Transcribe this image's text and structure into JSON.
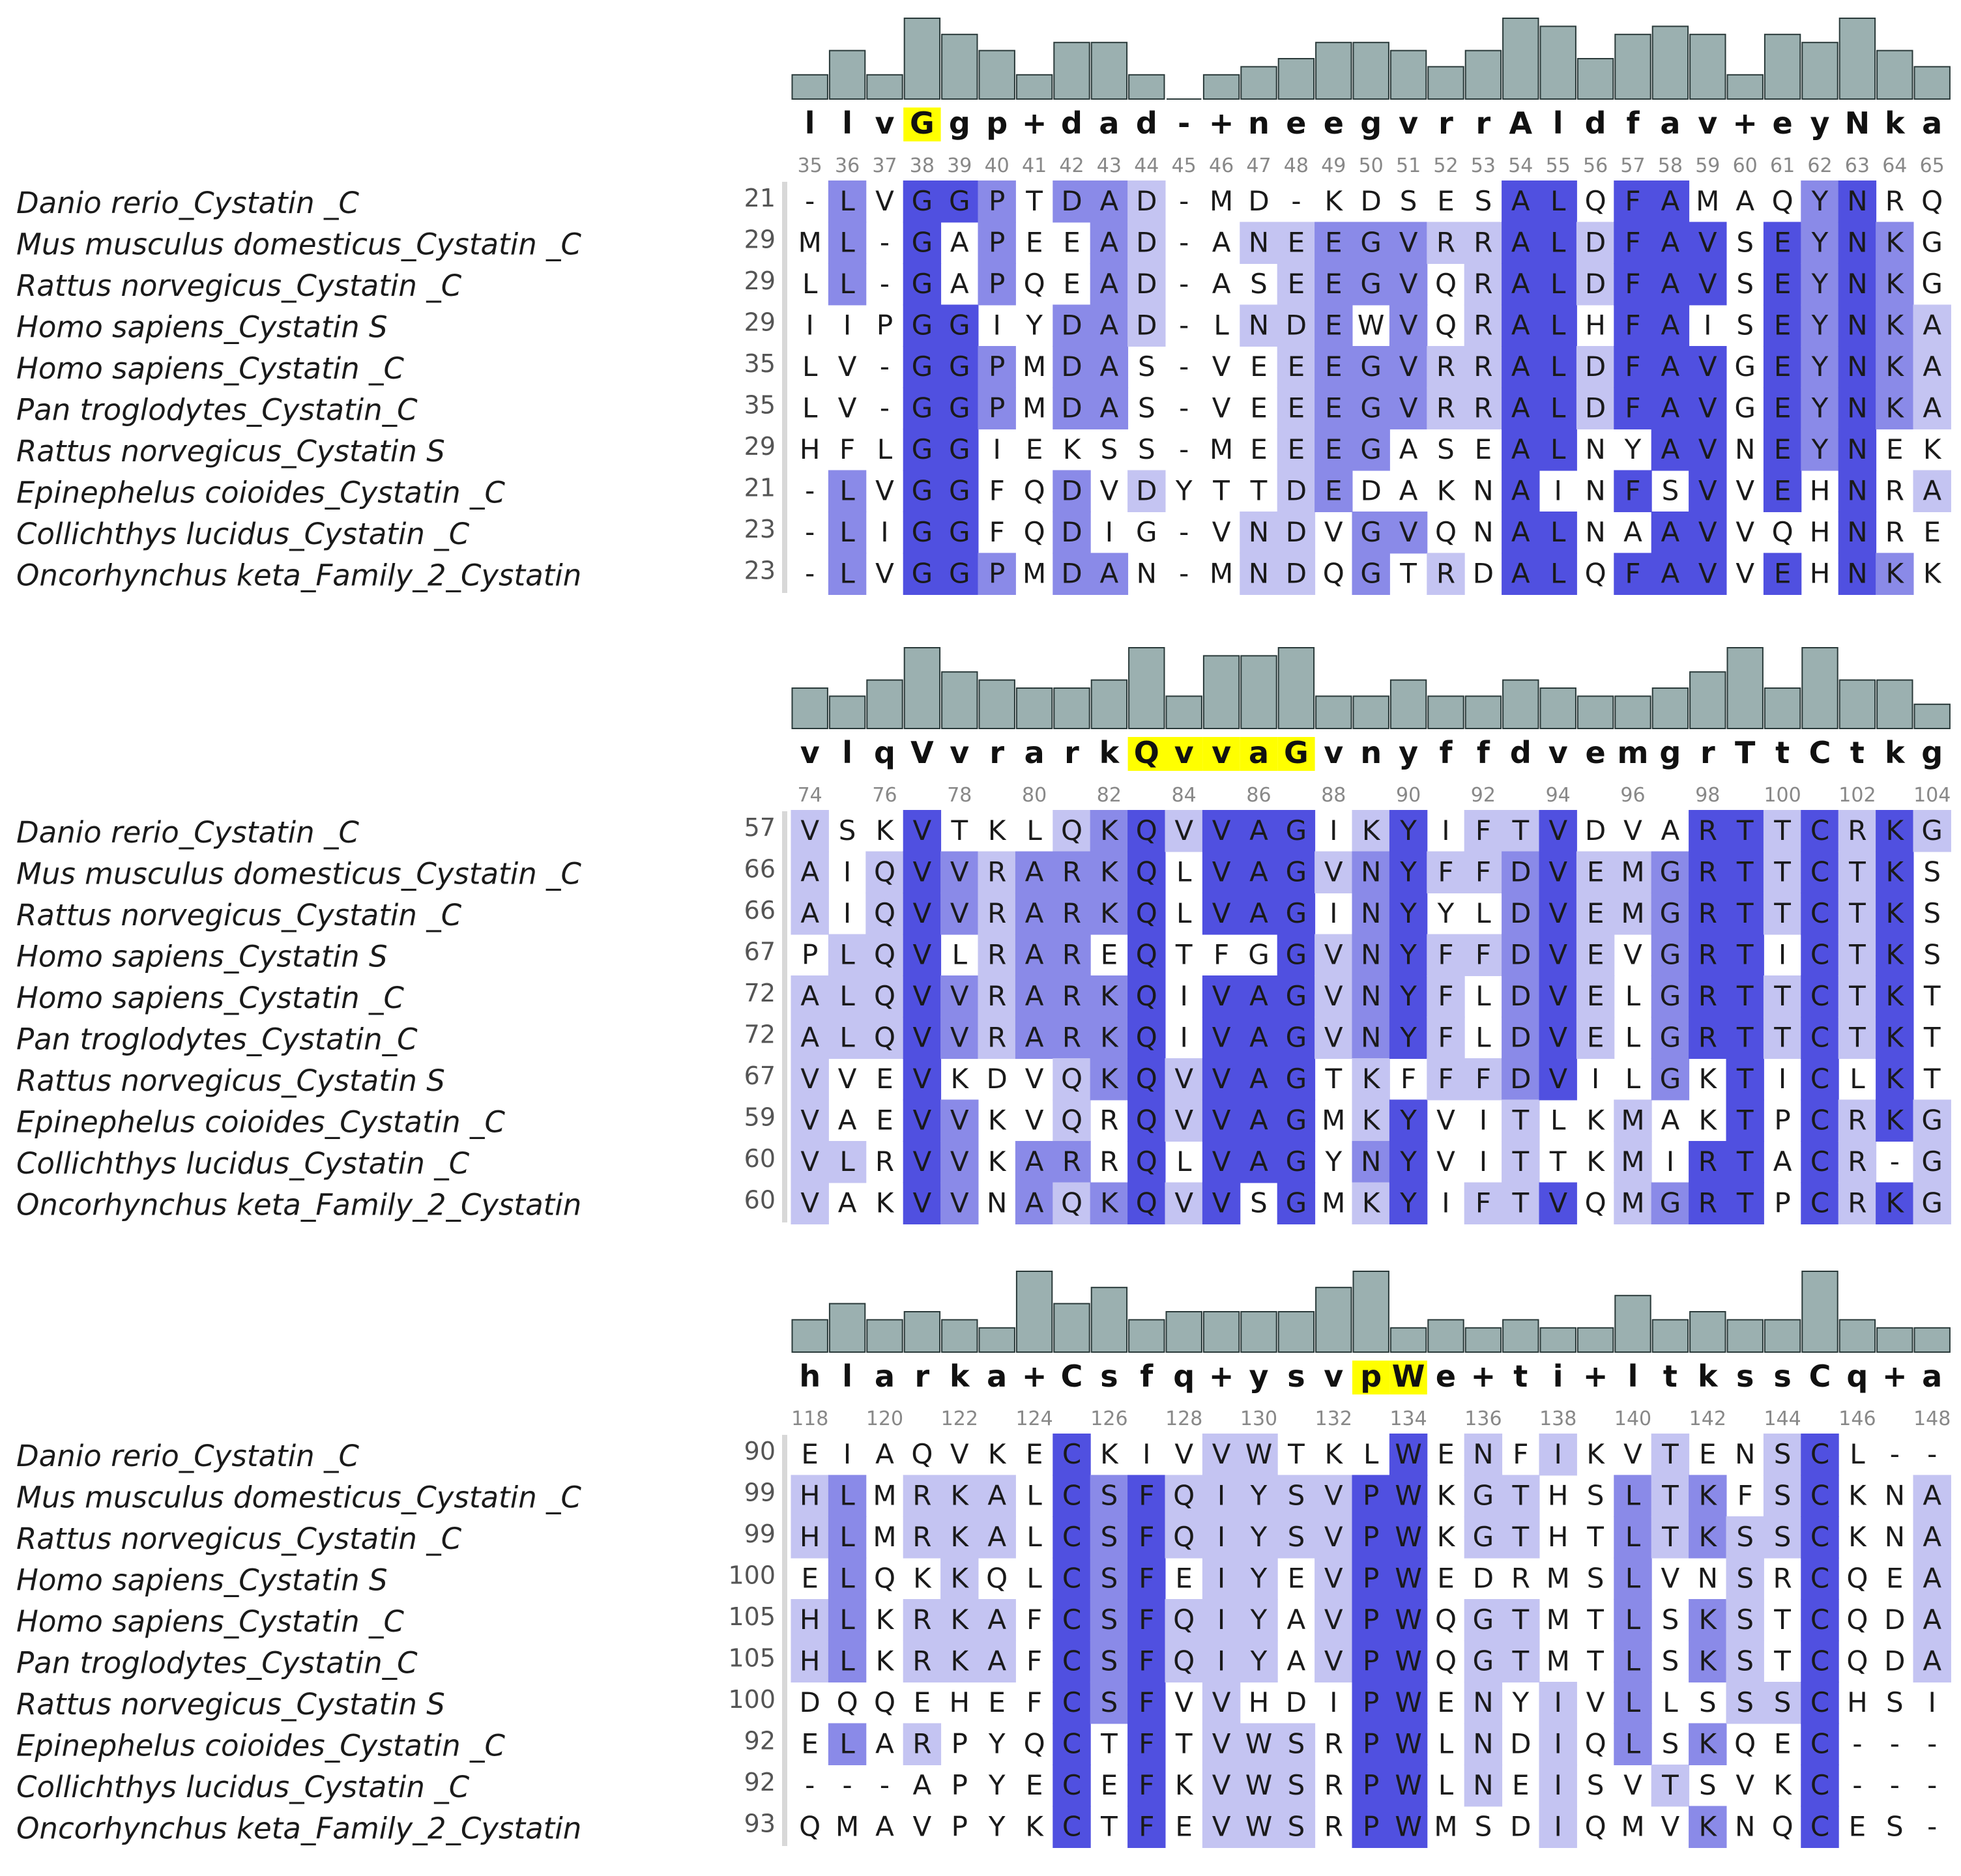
{
  "colors": {
    "shade_high": "#5050e0",
    "shade_mid": "#8a8ae8",
    "shade_low": "#c4c4f2",
    "highlight": "#ffff00",
    "bar_fill": "#9bb0b0",
    "bar_stroke": "#2a3a3a"
  },
  "species": [
    "Danio rerio_Cystatin _C",
    "Mus musculus domesticus_Cystatin _C",
    "Rattus norvegicus_Cystatin _C",
    "Homo sapiens_Cystatin S",
    "Homo sapiens_Cystatin _C",
    "Pan troglodytes_Cystatin_C",
    "Rattus norvegicus_Cystatin S",
    "Epinephelus coioides_Cystatin _C",
    "Collichthys lucidus_Cystatin _C",
    "Oncorhynchus keta_Family_2_Cystatin"
  ],
  "blocks": [
    {
      "start_numbers": [
        "21",
        "29",
        "29",
        "29",
        "35",
        "35",
        "29",
        "21",
        "23",
        "23"
      ],
      "position_labels": [
        "35",
        "36",
        "37",
        "38",
        "39",
        "40",
        "41",
        "42",
        "43",
        "44",
        "45",
        "46",
        "47",
        "48",
        "49",
        "50",
        "51",
        "52",
        "53",
        "54",
        "55",
        "56",
        "57",
        "58",
        "59",
        "60",
        "61",
        "62",
        "63",
        "64",
        "65"
      ],
      "label_every": 1,
      "consensus": [
        "l",
        "l",
        "v",
        "G",
        "g",
        "p",
        "+",
        "d",
        "a",
        "d",
        "-",
        "+",
        "n",
        "e",
        "e",
        "g",
        "v",
        "r",
        "r",
        "A",
        "l",
        "d",
        "f",
        "a",
        "v",
        "+",
        "e",
        "y",
        "N",
        "k",
        "a"
      ],
      "consensus_highlight": [
        3
      ],
      "conservation": [
        0.3,
        0.6,
        0.3,
        1.0,
        0.8,
        0.6,
        0.3,
        0.7,
        0.7,
        0.3,
        0.0,
        0.3,
        0.4,
        0.5,
        0.7,
        0.7,
        0.6,
        0.4,
        0.6,
        1.0,
        0.9,
        0.5,
        0.8,
        0.9,
        0.8,
        0.3,
        0.8,
        0.7,
        1.0,
        0.6,
        0.4
      ],
      "rows": [
        "-LVGGPTDAD-MD-KDSESALQFAMAQYNRQ",
        "ML-GAPEEAD-ANEEGVRRALDFAVSEYNKG",
        "LL-GAPQEAD-ASEEGVQRALDFAVSEYNKG",
        "IIPGGIYDAD-LNDEWVQRALHFAISEYNKA",
        "LV-GGPMDAS-VEEEGVRRALDFAVGEYNKA",
        "LV-GGPMDAS-VEEEGVRRALDFAVGEYNKA",
        "HFLGGIEKSS-MEEEGASEALNYAVNEYNEK",
        "-LVGGFQDVDYTTDEDAKNAINFSVVEHNRA",
        "-LIGGFQDIG-VNDVGVQNALNAAVVQHNRE",
        "-LVGGPMDAN-MNDQGTRDALQFAVVEHNKK"
      ]
    },
    {
      "start_numbers": [
        "57",
        "66",
        "66",
        "67",
        "72",
        "72",
        "67",
        "59",
        "60",
        "60"
      ],
      "position_labels": [
        "74",
        "76",
        "78",
        "80",
        "82",
        "84",
        "86",
        "88",
        "90",
        "92",
        "94",
        "96",
        "98",
        "100",
        "102",
        "104"
      ],
      "label_every": 2,
      "consensus": [
        "v",
        "l",
        "q",
        "V",
        "v",
        "r",
        "a",
        "r",
        "k",
        "Q",
        "v",
        "v",
        "a",
        "G",
        "v",
        "n",
        "y",
        "f",
        "f",
        "d",
        "v",
        "e",
        "m",
        "g",
        "r",
        "T",
        "t",
        "C",
        "t",
        "k",
        "g"
      ],
      "consensus_highlight": [
        9,
        10,
        11,
        12,
        13
      ],
      "conservation": [
        0.5,
        0.4,
        0.6,
        1.0,
        0.7,
        0.6,
        0.5,
        0.5,
        0.6,
        1.0,
        0.4,
        0.9,
        0.9,
        1.0,
        0.4,
        0.4,
        0.6,
        0.4,
        0.4,
        0.6,
        0.5,
        0.4,
        0.4,
        0.5,
        0.7,
        1.0,
        0.5,
        1.0,
        0.6,
        0.6,
        0.3
      ],
      "rows": [
        "VSKVTKLQKQVVAGIKYIFTVDVARTTCRKG",
        "AIQVVRARKQLVAGVNYFFDVEMGRTTCTKS",
        "AIQVVRARKQLVAGINYYLDVEMGRTTCTKS",
        "PLQVLRAREQTFGGVNYFFDVEVGRTICTKS",
        "ALQVVRARKQIVAGVNYFLDVELGRTTCTKT",
        "ALQVVRARKQIVAGVNYFLDVELGRTTCTKT",
        "VVEVKDVQKQVVAGTKFFFDVILGKTICLKT",
        "VAEVVKVQRQVVAGMKYVITLKMAKTPCRKG",
        "VLRVVKARRQLVAGYNYVITTKMIRTACR-G",
        "VAKVVNAQKQVVSGMKYIFTVQMGRTPCRKG"
      ]
    },
    {
      "start_numbers": [
        "90",
        "99",
        "99",
        "100",
        "105",
        "105",
        "100",
        "92",
        "92",
        "93"
      ],
      "position_labels": [
        "118",
        "120",
        "122",
        "124",
        "126",
        "128",
        "130",
        "132",
        "134",
        "136",
        "138",
        "140",
        "142",
        "144",
        "146",
        "148"
      ],
      "label_every": 2,
      "consensus": [
        "h",
        "l",
        "a",
        "r",
        "k",
        "a",
        "+",
        "C",
        "s",
        "f",
        "q",
        "+",
        "y",
        "s",
        "v",
        "p",
        "W",
        "e",
        "+",
        "t",
        "i",
        "+",
        "l",
        "t",
        "k",
        "s",
        "s",
        "C",
        "q",
        "+",
        "a"
      ],
      "consensus_highlight": [
        15,
        16
      ],
      "conservation": [
        0.4,
        0.6,
        0.4,
        0.5,
        0.4,
        0.3,
        1.0,
        0.6,
        0.8,
        0.4,
        0.5,
        0.5,
        0.5,
        0.5,
        0.8,
        1.0,
        0.3,
        0.4,
        0.3,
        0.4,
        0.3,
        0.3,
        0.7,
        0.4,
        0.5,
        0.4,
        0.4,
        1.0,
        0.4,
        0.3,
        0.3
      ],
      "rows": [
        "EIAQVKECKIVVWTKLWENFIKVTENSCL--",
        "HLMRKALCSFQIYSVPWKGTHSLTKFSCKNA",
        "HLMRKALCSFQIYSVPWKGTHTLTKSSCKNA",
        "ELQKKQLCSFEIYEVPWEDRMSLVNSRCQEA",
        "HLKRKAFCSFQIYAVPWQGTMTLSKSTCQDA",
        "HLKRKAFCSFQIYAVPWQGTMTLSKSTCQDA",
        "DQQEHEFCSFVVHDIPWENYIVLLSSSCHSI",
        "ELARPYQCTFTVWSRPWLNDIQLSKQEC---",
        "---APYECEFKVWSRPWLNEISVTSVKC---",
        "QMAVPYKCTFEVWSRPWMSDIQMVKNQCES-"
      ]
    }
  ]
}
